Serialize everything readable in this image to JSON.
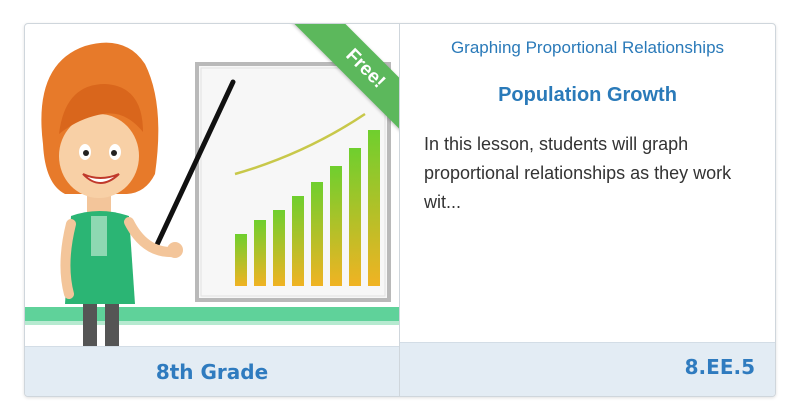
{
  "card": {
    "badge": "Free!",
    "grade": "8th Grade",
    "topic": "Graphing Proportional Relationships",
    "title": "Population Growth",
    "description": "In this lesson, students will graph proportional relationships as they work wit...",
    "standard": "8.EE.5",
    "illustration": {
      "icon": "teacher-pointing-at-growth-chart-icon",
      "bar_levels": [
        0.26,
        0.33,
        0.38,
        0.45,
        0.52,
        0.6,
        0.69,
        0.78
      ]
    }
  },
  "colors": {
    "accent_blue": "#2a7ab9",
    "badge_green": "#5cb85c",
    "footer_bg": "#e3ecf4"
  }
}
